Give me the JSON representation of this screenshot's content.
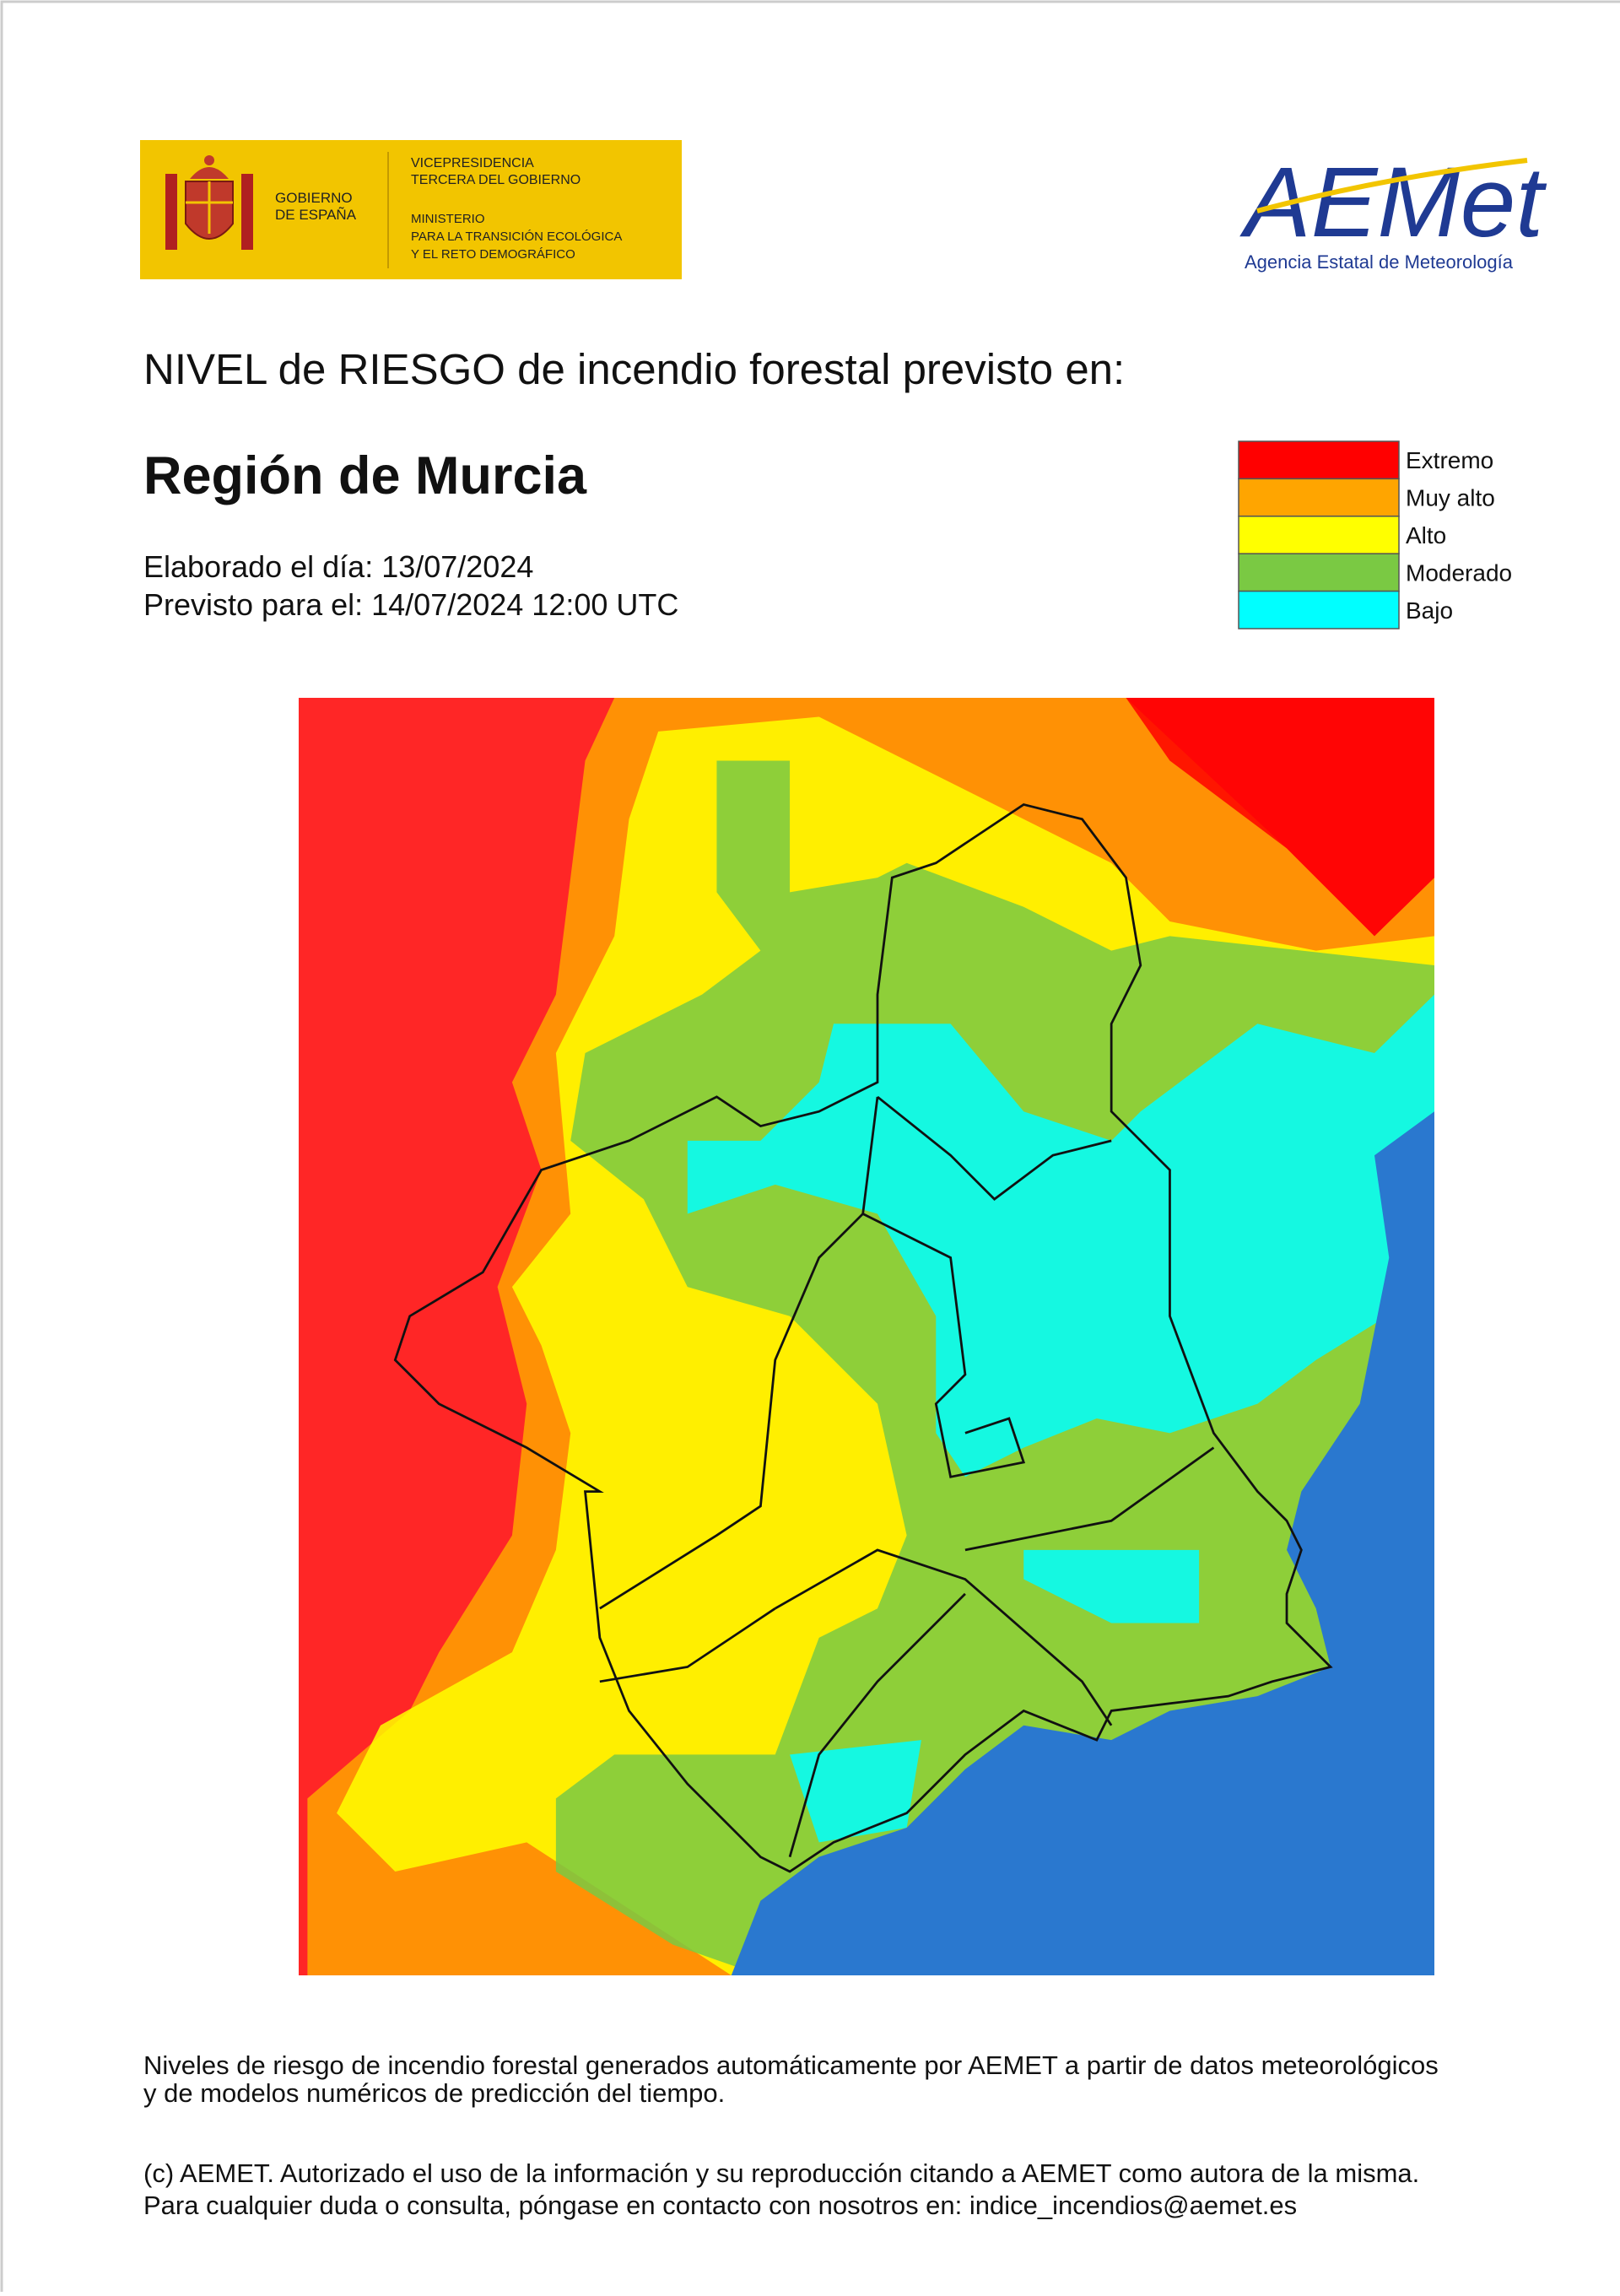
{
  "header": {
    "government": {
      "lines": [
        "GOBIERNO",
        "DE ESPAÑA"
      ]
    },
    "ministry": {
      "lines": [
        "VICEPRESIDENCIA",
        "TERCERA DEL GOBIERNO",
        "MINISTERIO",
        "PARA LA TRANSICIÓN ECOLÓGICA",
        "Y EL RETO DEMOGRÁFICO"
      ]
    },
    "agency": {
      "logo": "AEMet",
      "name": "Agencia Estatal de Meteorología"
    }
  },
  "title": "NIVEL de RIESGO de incendio forestal previsto en:",
  "region": "Región de Murcia",
  "dates": {
    "issued": "Elaborado el día: 13/07/2024",
    "valid": "Previsto para el: 14/07/2024 12:00 UTC"
  },
  "legend": [
    {
      "label": "Extremo",
      "color": "#ff0000"
    },
    {
      "label": "Muy alto",
      "color": "#ffa500"
    },
    {
      "label": "Alto",
      "color": "#ffff00"
    },
    {
      "label": "Moderado",
      "color": "#7ac943"
    },
    {
      "label": "Bajo",
      "color": "#00ffff"
    }
  ],
  "footer": {
    "note": [
      "Niveles de riesgo de incendio forestal generados automáticamente por AEMET a partir de datos meteorológicos",
      "y de modelos numéricos de predicción del tiempo."
    ],
    "copyright": [
      "(c) AEMET. Autorizado el uso de la información y su reproducción citando a AEMET como autora de la misma.",
      "Para cualquier duda o consulta, póngase en contacto con nosotros en: indice_incendios@aemet.es"
    ]
  }
}
